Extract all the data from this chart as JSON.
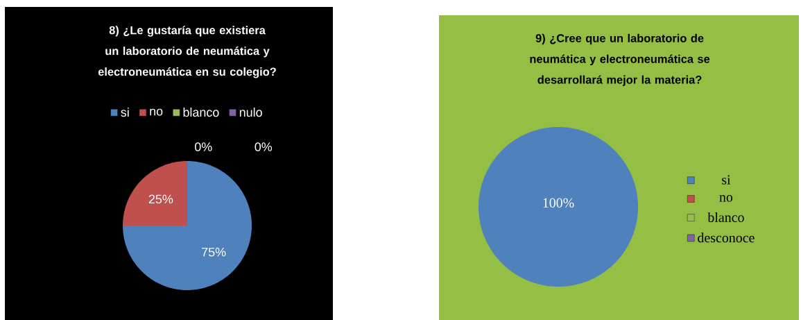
{
  "chart_data": [
    {
      "type": "pie",
      "title": "8) ¿Le gustaría que existiera un laboratorio de neumática y electroneumática en su colegio?",
      "categories": [
        "si",
        "no",
        "blanco",
        "nulo"
      ],
      "values": [
        75,
        25,
        0,
        0
      ],
      "colors": [
        "#4f81bd",
        "#c0504d",
        "#9bbb59",
        "#8064a2"
      ],
      "value_labels": [
        "75%",
        "25%",
        "0%",
        "0%"
      ],
      "legend": "top"
    },
    {
      "type": "pie",
      "title": "9) ¿Cree que un laboratorio de neumática y electroneumática se desarrollará mejor la materia?",
      "categories": [
        "si",
        "no",
        "blanco",
        "desconoce"
      ],
      "values": [
        100,
        0,
        0,
        0
      ],
      "colors": [
        "#4f81bd",
        "#c0504d",
        "#9bbb59",
        "#8064a2"
      ],
      "value_labels": [
        "100%",
        null,
        null,
        null
      ],
      "legend": "right"
    }
  ]
}
